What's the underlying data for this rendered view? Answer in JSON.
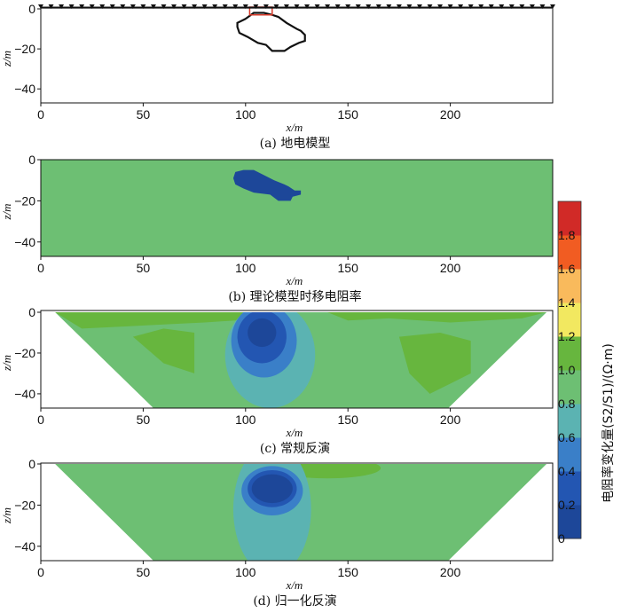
{
  "figure": {
    "colorbar": {
      "title": "电阻率变化量(S2/S1)/(Ω·m)",
      "bounds": [
        0,
        0.2,
        0.4,
        0.6,
        0.8,
        1.0,
        1.2,
        1.4,
        1.6,
        1.8,
        2.0
      ],
      "tick_labels": [
        "0",
        "0.2",
        "0.4",
        "0.6",
        "0.8",
        "1.0",
        "1.2",
        "1.4",
        "1.6",
        "1.8"
      ],
      "colors": [
        "#1d4799",
        "#2356b2",
        "#3a7fc8",
        "#5bb3b2",
        "#6dbf73",
        "#67b63e",
        "#f2e860",
        "#f9ba5c",
        "#f15c22",
        "#d12a27"
      ]
    }
  },
  "chart_data": [
    {
      "type": "heatmap",
      "caption": "(a) 地电模型",
      "xlabel": "x/m",
      "ylabel": "z/m",
      "xlim": [
        0,
        250
      ],
      "ylim": [
        -47,
        0
      ],
      "xticks": [
        0,
        50,
        100,
        150,
        200
      ],
      "yticks": [
        0,
        -20,
        -40
      ],
      "tick_labels_x": [
        "0",
        "50",
        "100",
        "150",
        "200"
      ],
      "tick_labels_y": [
        "0",
        "−20",
        "−40"
      ],
      "electrodes": "triangles along z=0",
      "anomaly_outline": [
        [
          100,
          -5
        ],
        [
          104,
          -2
        ],
        [
          109,
          -2
        ],
        [
          113,
          -3
        ],
        [
          116,
          -4
        ],
        [
          120,
          -7
        ],
        [
          125,
          -10
        ],
        [
          127,
          -11
        ],
        [
          129,
          -13
        ],
        [
          129,
          -16
        ],
        [
          126,
          -17
        ],
        [
          122,
          -19
        ],
        [
          119,
          -21
        ],
        [
          113,
          -21
        ],
        [
          110,
          -18
        ],
        [
          106,
          -17
        ],
        [
          101,
          -14
        ],
        [
          97,
          -12
        ],
        [
          96,
          -9
        ],
        [
          96,
          -7
        ]
      ],
      "surface_box": {
        "x": [
          102,
          113
        ],
        "z": [
          0,
          -3
        ],
        "color": "#d83a2a"
      }
    },
    {
      "type": "heatmap",
      "caption": "(b) 理论模型时移电阻率",
      "xlabel": "x/m",
      "ylabel": "z/m",
      "xlim": [
        0,
        250
      ],
      "ylim": [
        -47,
        0
      ],
      "xticks": [
        0,
        50,
        100,
        150,
        200
      ],
      "yticks": [
        0,
        -20,
        -40
      ],
      "tick_labels_x": [
        "0",
        "50",
        "100",
        "150",
        "200"
      ],
      "tick_labels_y": [
        "0",
        "−20",
        "−40"
      ],
      "background_value": 0.9,
      "anomaly_value": 0.1
    },
    {
      "type": "heatmap",
      "caption": "(c) 常规反演",
      "xlabel": "x/m",
      "ylabel": "z/m",
      "xlim": [
        0,
        250
      ],
      "ylim": [
        -47,
        0
      ],
      "xticks": [
        0,
        50,
        100,
        150,
        200
      ],
      "yticks": [
        0,
        -20,
        -40
      ],
      "tick_labels_x": [
        "0",
        "50",
        "100",
        "150",
        "200"
      ],
      "tick_labels_y": [
        "0",
        "−20",
        "−40"
      ],
      "section_polygon": [
        [
          7,
          0
        ],
        [
          247,
          0
        ],
        [
          199,
          -47
        ],
        [
          55,
          -47
        ]
      ],
      "background_value": 0.9,
      "anomaly_center": [
        108,
        -11
      ],
      "contours": [
        {
          "value": 1.1,
          "rx": 28,
          "rz": 10,
          "cx": 96,
          "cz": -4
        },
        {
          "value": 0.7,
          "rx": 22,
          "rz": 26,
          "cx": 112,
          "cz": -21
        },
        {
          "value": 0.5,
          "rx": 16,
          "rz": 18,
          "cx": 109,
          "cz": -14
        },
        {
          "value": 0.3,
          "rx": 12,
          "rz": 13,
          "cx": 108,
          "cz": -12
        },
        {
          "value": 0.1,
          "rx": 7,
          "rz": 7,
          "cx": 108,
          "cz": -10
        }
      ]
    },
    {
      "type": "heatmap",
      "caption": "(d) 归一化反演",
      "xlabel": "x/m",
      "ylabel": "z/m",
      "xlim": [
        0,
        250
      ],
      "ylim": [
        -47,
        0
      ],
      "xticks": [
        0,
        50,
        100,
        150,
        200
      ],
      "yticks": [
        0,
        -20,
        -40
      ],
      "tick_labels_x": [
        "0",
        "50",
        "100",
        "150",
        "200"
      ],
      "tick_labels_y": [
        "0",
        "−20",
        "−40"
      ],
      "section_polygon": [
        [
          7,
          0
        ],
        [
          247,
          0
        ],
        [
          199,
          -47
        ],
        [
          55,
          -47
        ]
      ],
      "background_value": 0.9,
      "contours": [
        {
          "value": 1.1,
          "rx": 26,
          "rz": 5,
          "cx": 140,
          "cz": -2
        },
        {
          "value": 0.7,
          "rx": 19,
          "rz": 32,
          "cx": 113,
          "cz": -22
        },
        {
          "value": 0.5,
          "rx": 15,
          "rz": 12,
          "cx": 113,
          "cz": -13
        },
        {
          "value": 0.3,
          "rx": 12,
          "rz": 9,
          "cx": 113,
          "cz": -12
        },
        {
          "value": 0.1,
          "rx": 10,
          "rz": 7,
          "cx": 113,
          "cz": -12
        }
      ]
    }
  ]
}
